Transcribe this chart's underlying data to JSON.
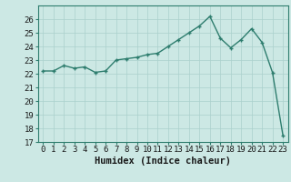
{
  "x": [
    0,
    1,
    2,
    3,
    4,
    5,
    6,
    7,
    8,
    9,
    10,
    11,
    12,
    13,
    14,
    15,
    16,
    17,
    18,
    19,
    20,
    21,
    22,
    23
  ],
  "y": [
    22.2,
    22.2,
    22.6,
    22.4,
    22.5,
    22.1,
    22.2,
    23.0,
    23.1,
    23.2,
    23.4,
    23.5,
    24.0,
    24.5,
    25.0,
    25.5,
    26.2,
    24.6,
    23.9,
    24.5,
    25.3,
    24.3,
    22.1,
    17.5
  ],
  "line_color": "#2e7d6e",
  "marker": "+",
  "marker_color": "#2e7d6e",
  "bg_color": "#cce8e4",
  "grid_color": "#aad0cc",
  "xlabel": "Humidex (Indice chaleur)",
  "ylim": [
    17,
    27
  ],
  "xlim": [
    -0.5,
    23.5
  ],
  "yticks": [
    17,
    18,
    19,
    20,
    21,
    22,
    23,
    24,
    25,
    26
  ],
  "xticks": [
    0,
    1,
    2,
    3,
    4,
    5,
    6,
    7,
    8,
    9,
    10,
    11,
    12,
    13,
    14,
    15,
    16,
    17,
    18,
    19,
    20,
    21,
    22,
    23
  ],
  "tick_label_fontsize": 6.5,
  "xlabel_fontsize": 7.5
}
